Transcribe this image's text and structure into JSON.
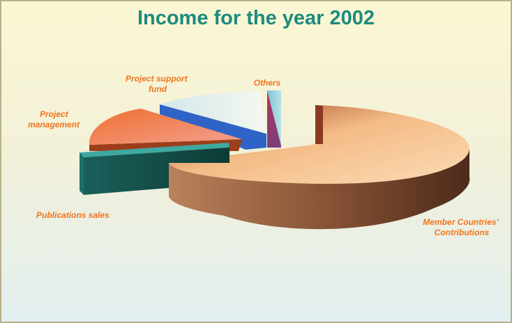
{
  "chart_data": {
    "type": "pie",
    "title": "Income for the year 2002",
    "three_d": true,
    "exploded": true,
    "slices": [
      {
        "label": [
          "Member Countries'",
          "Contributions"
        ],
        "value": 66,
        "color": "#e0a070"
      },
      {
        "label": [
          "Others"
        ],
        "value": 2,
        "color": "#8bc8d8"
      },
      {
        "label": [
          "Project support",
          "fund"
        ],
        "value": 9,
        "color": "#e2eef0"
      },
      {
        "label": [
          "Project",
          "management"
        ],
        "value": 13,
        "color": "#ef7a58"
      },
      {
        "label": [
          "Publications sales"
        ],
        "value": 10,
        "color": "#1f6f66"
      }
    ]
  }
}
